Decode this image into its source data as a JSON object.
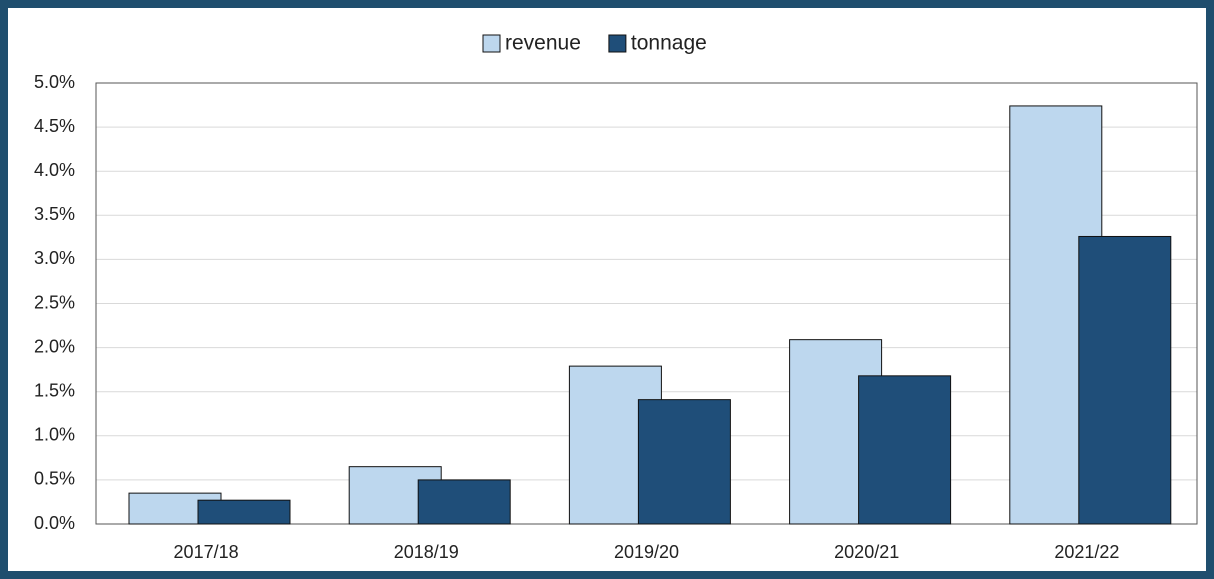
{
  "chart_data": {
    "type": "bar",
    "categories": [
      "2017/18",
      "2018/19",
      "2019/20",
      "2020/21",
      "2021/22"
    ],
    "series": [
      {
        "name": "revenue",
        "color": "#bdd7ee",
        "values": [
          0.35,
          0.65,
          1.79,
          2.09,
          4.74
        ]
      },
      {
        "name": "tonnage",
        "color": "#1f4e79",
        "values": [
          0.27,
          0.5,
          1.41,
          1.68,
          3.26
        ]
      }
    ],
    "ylim": [
      0,
      5
    ],
    "yticks": [
      {
        "value": 0,
        "label": "0.0%"
      },
      {
        "value": 0.5,
        "label": "0.5%"
      },
      {
        "value": 1,
        "label": "1.0%"
      },
      {
        "value": 1.5,
        "label": "1.5%"
      },
      {
        "value": 2,
        "label": "2.0%"
      },
      {
        "value": 2.5,
        "label": "2.5%"
      },
      {
        "value": 3,
        "label": "3.0%"
      },
      {
        "value": 3.5,
        "label": "3.5%"
      },
      {
        "value": 4,
        "label": "4.0%"
      },
      {
        "value": 4.5,
        "label": "4.5%"
      },
      {
        "value": 5,
        "label": "5.0%"
      }
    ],
    "grid": true,
    "legend": "top"
  }
}
